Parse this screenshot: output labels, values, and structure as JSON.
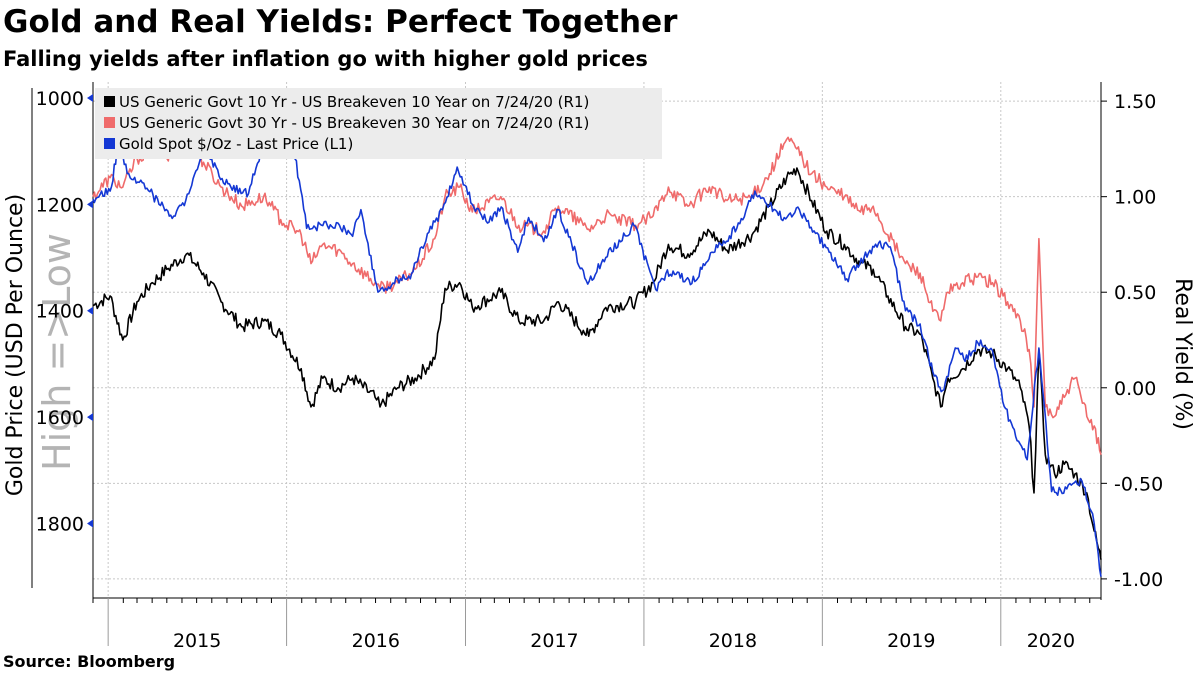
{
  "title": "Gold and Real Yields: Perfect Together",
  "subtitle": "Falling yields after inflation go with higher gold prices",
  "source": "Source: Bloomberg",
  "colors": {
    "us10": "#000000",
    "us30": "#ef6b6b",
    "gold": "#1438d4",
    "grid": "#c8c8c8",
    "legend_bg": "#ececec",
    "watermark": "#b4b4b4"
  },
  "chart_data": {
    "type": "line",
    "title": "Gold and Real Yields: Perfect Together",
    "subtitle": "Falling yields after inflation go with higher gold prices",
    "x_axis": {
      "type": "time",
      "range": [
        "2014-12-01",
        "2020-07-24"
      ],
      "year_labels": [
        "2015",
        "2016",
        "2017",
        "2018",
        "2019",
        "2020"
      ]
    },
    "left_axis": {
      "label": "Gold Price (USD Per Ounce)",
      "inverted": true,
      "range": [
        970,
        1940
      ],
      "ticks": [
        1000,
        1200,
        1400,
        1600,
        1800
      ],
      "watermark": "High =>Low"
    },
    "right_axis": {
      "label": "Real Yield (%)",
      "range": [
        -1.1,
        1.6
      ],
      "ticks": [
        "1.50",
        "1.00",
        "0.50",
        "0.00",
        "-0.50",
        "-1.00"
      ]
    },
    "grid": true,
    "legend_position": "top-left",
    "legend": [
      "US Generic Govt 10 Yr - US Breakeven 10 Year on 7/24/20 (R1)",
      "US Generic Govt 30 Yr - US Breakeven 30 Year on 7/24/20 (R1)",
      "Gold Spot $/Oz - Last Price (L1)"
    ],
    "series": [
      {
        "name": "US Generic Govt 10 Yr - US Breakeven 10 Year on 7/24/20 (R1)",
        "axis": "right",
        "points": [
          [
            "2014-12-01",
            0.43
          ],
          [
            "2015-01-05",
            0.48
          ],
          [
            "2015-01-31",
            0.25
          ],
          [
            "2015-03-01",
            0.45
          ],
          [
            "2015-04-01",
            0.55
          ],
          [
            "2015-05-01",
            0.62
          ],
          [
            "2015-06-10",
            0.7
          ],
          [
            "2015-07-15",
            0.6
          ],
          [
            "2015-08-20",
            0.45
          ],
          [
            "2015-10-01",
            0.32
          ],
          [
            "2015-11-15",
            0.35
          ],
          [
            "2015-12-20",
            0.28
          ],
          [
            "2016-01-31",
            0.1
          ],
          [
            "2016-02-20",
            -0.1
          ],
          [
            "2016-03-15",
            0.05
          ],
          [
            "2016-04-15",
            0.0
          ],
          [
            "2016-05-15",
            0.05
          ],
          [
            "2016-06-30",
            -0.05
          ],
          [
            "2016-07-10",
            -0.1
          ],
          [
            "2016-08-15",
            0.0
          ],
          [
            "2016-09-20",
            0.05
          ],
          [
            "2016-10-30",
            0.15
          ],
          [
            "2016-11-20",
            0.52
          ],
          [
            "2016-12-20",
            0.55
          ],
          [
            "2017-01-15",
            0.42
          ],
          [
            "2017-03-14",
            0.5
          ],
          [
            "2017-04-20",
            0.35
          ],
          [
            "2017-06-10",
            0.35
          ],
          [
            "2017-07-10",
            0.45
          ],
          [
            "2017-08-30",
            0.3
          ],
          [
            "2017-09-10",
            0.27
          ],
          [
            "2017-10-15",
            0.42
          ],
          [
            "2017-12-15",
            0.45
          ],
          [
            "2018-01-20",
            0.55
          ],
          [
            "2018-02-20",
            0.75
          ],
          [
            "2018-04-01",
            0.7
          ],
          [
            "2018-05-15",
            0.82
          ],
          [
            "2018-06-20",
            0.72
          ],
          [
            "2018-08-10",
            0.8
          ],
          [
            "2018-09-15",
            0.95
          ],
          [
            "2018-10-20",
            1.1
          ],
          [
            "2018-11-10",
            1.15
          ],
          [
            "2018-12-10",
            0.98
          ],
          [
            "2019-01-10",
            0.82
          ],
          [
            "2019-02-15",
            0.75
          ],
          [
            "2019-03-20",
            0.65
          ],
          [
            "2019-04-15",
            0.62
          ],
          [
            "2019-05-15",
            0.48
          ],
          [
            "2019-06-20",
            0.32
          ],
          [
            "2019-07-20",
            0.28
          ],
          [
            "2019-08-15",
            0.05
          ],
          [
            "2019-08-31",
            -0.1
          ],
          [
            "2019-09-15",
            0.05
          ],
          [
            "2019-10-15",
            0.1
          ],
          [
            "2019-11-15",
            0.2
          ],
          [
            "2019-12-15",
            0.18
          ],
          [
            "2020-01-15",
            0.1
          ],
          [
            "2020-02-10",
            0.0
          ],
          [
            "2020-02-28",
            -0.2
          ],
          [
            "2020-03-09",
            -0.55
          ],
          [
            "2020-03-19",
            0.2
          ],
          [
            "2020-04-01",
            -0.35
          ],
          [
            "2020-04-20",
            -0.45
          ],
          [
            "2020-05-10",
            -0.4
          ],
          [
            "2020-06-01",
            -0.45
          ],
          [
            "2020-06-25",
            -0.55
          ],
          [
            "2020-07-10",
            -0.75
          ],
          [
            "2020-07-24",
            -0.9
          ]
        ]
      },
      {
        "name": "US Generic Govt 30 Yr - US Breakeven 30 Year on 7/24/20 (R1)",
        "axis": "right",
        "points": [
          [
            "2014-12-01",
            1.0
          ],
          [
            "2015-01-05",
            1.1
          ],
          [
            "2015-01-31",
            1.05
          ],
          [
            "2015-03-01",
            1.2
          ],
          [
            "2015-04-01",
            1.25
          ],
          [
            "2015-05-01",
            1.2
          ],
          [
            "2015-06-10",
            1.3
          ],
          [
            "2015-07-15",
            1.18
          ],
          [
            "2015-08-20",
            1.05
          ],
          [
            "2015-10-01",
            0.95
          ],
          [
            "2015-11-15",
            1.0
          ],
          [
            "2015-12-20",
            0.88
          ],
          [
            "2016-01-31",
            0.8
          ],
          [
            "2016-02-20",
            0.65
          ],
          [
            "2016-03-15",
            0.75
          ],
          [
            "2016-04-15",
            0.72
          ],
          [
            "2016-05-15",
            0.65
          ],
          [
            "2016-06-30",
            0.55
          ],
          [
            "2016-07-10",
            0.52
          ],
          [
            "2016-08-15",
            0.55
          ],
          [
            "2016-09-20",
            0.62
          ],
          [
            "2016-10-30",
            0.78
          ],
          [
            "2016-11-20",
            1.0
          ],
          [
            "2016-12-20",
            1.05
          ],
          [
            "2017-01-15",
            0.92
          ],
          [
            "2017-03-14",
            1.0
          ],
          [
            "2017-04-20",
            0.85
          ],
          [
            "2017-06-10",
            0.82
          ],
          [
            "2017-07-10",
            0.95
          ],
          [
            "2017-08-30",
            0.85
          ],
          [
            "2017-09-10",
            0.83
          ],
          [
            "2017-10-15",
            0.9
          ],
          [
            "2017-12-15",
            0.85
          ],
          [
            "2018-01-20",
            0.9
          ],
          [
            "2018-02-20",
            1.05
          ],
          [
            "2018-04-01",
            0.95
          ],
          [
            "2018-05-15",
            1.05
          ],
          [
            "2018-06-20",
            0.98
          ],
          [
            "2018-08-10",
            1.0
          ],
          [
            "2018-09-15",
            1.12
          ],
          [
            "2018-10-20",
            1.3
          ],
          [
            "2018-11-10",
            1.25
          ],
          [
            "2018-12-10",
            1.12
          ],
          [
            "2019-01-10",
            1.05
          ],
          [
            "2019-02-15",
            1.0
          ],
          [
            "2019-03-20",
            0.92
          ],
          [
            "2019-04-15",
            0.95
          ],
          [
            "2019-05-15",
            0.8
          ],
          [
            "2019-06-20",
            0.65
          ],
          [
            "2019-07-20",
            0.6
          ],
          [
            "2019-08-15",
            0.4
          ],
          [
            "2019-08-31",
            0.35
          ],
          [
            "2019-09-15",
            0.5
          ],
          [
            "2019-10-15",
            0.55
          ],
          [
            "2019-11-15",
            0.58
          ],
          [
            "2019-12-15",
            0.55
          ],
          [
            "2020-01-15",
            0.45
          ],
          [
            "2020-02-10",
            0.35
          ],
          [
            "2020-02-28",
            0.2
          ],
          [
            "2020-03-09",
            -0.1
          ],
          [
            "2020-03-19",
            0.78
          ],
          [
            "2020-04-01",
            -0.1
          ],
          [
            "2020-04-20",
            -0.15
          ],
          [
            "2020-05-10",
            -0.05
          ],
          [
            "2020-06-01",
            0.05
          ],
          [
            "2020-06-25",
            -0.15
          ],
          [
            "2020-07-10",
            -0.2
          ],
          [
            "2020-07-24",
            -0.35
          ]
        ]
      },
      {
        "name": "Gold Spot $/Oz - Last Price (L1)",
        "axis": "left",
        "points": [
          [
            "2014-12-01",
            1190
          ],
          [
            "2015-01-05",
            1175
          ],
          [
            "2015-01-22",
            1090
          ],
          [
            "2015-02-15",
            1150
          ],
          [
            "2015-03-15",
            1160
          ],
          [
            "2015-04-15",
            1200
          ],
          [
            "2015-05-18",
            1222
          ],
          [
            "2015-06-15",
            1180
          ],
          [
            "2015-07-20",
            1095
          ],
          [
            "2015-08-25",
            1160
          ],
          [
            "2015-10-15",
            1180
          ],
          [
            "2015-11-15",
            1085
          ],
          [
            "2015-12-17",
            1052
          ],
          [
            "2016-01-15",
            1090
          ],
          [
            "2016-02-11",
            1245
          ],
          [
            "2016-03-15",
            1240
          ],
          [
            "2016-04-15",
            1235
          ],
          [
            "2016-05-15",
            1260
          ],
          [
            "2016-06-01",
            1210
          ],
          [
            "2016-07-06",
            1365
          ],
          [
            "2016-08-15",
            1340
          ],
          [
            "2016-09-10",
            1340
          ],
          [
            "2016-10-15",
            1255
          ],
          [
            "2016-11-15",
            1210
          ],
          [
            "2016-12-15",
            1130
          ],
          [
            "2017-01-15",
            1200
          ],
          [
            "2017-02-15",
            1235
          ],
          [
            "2017-03-15",
            1205
          ],
          [
            "2017-04-18",
            1290
          ],
          [
            "2017-05-10",
            1225
          ],
          [
            "2017-06-10",
            1270
          ],
          [
            "2017-07-10",
            1210
          ],
          [
            "2017-09-08",
            1350
          ],
          [
            "2017-10-15",
            1300
          ],
          [
            "2017-12-12",
            1240
          ],
          [
            "2018-01-25",
            1360
          ],
          [
            "2018-02-15",
            1330
          ],
          [
            "2018-04-15",
            1345
          ],
          [
            "2018-05-20",
            1290
          ],
          [
            "2018-07-10",
            1245
          ],
          [
            "2018-08-16",
            1175
          ],
          [
            "2018-09-15",
            1200
          ],
          [
            "2018-10-15",
            1225
          ],
          [
            "2018-11-15",
            1210
          ],
          [
            "2018-12-15",
            1250
          ],
          [
            "2019-01-15",
            1290
          ],
          [
            "2019-02-20",
            1340
          ],
          [
            "2019-04-20",
            1275
          ],
          [
            "2019-05-20",
            1280
          ],
          [
            "2019-06-20",
            1400
          ],
          [
            "2019-07-20",
            1425
          ],
          [
            "2019-08-15",
            1515
          ],
          [
            "2019-09-04",
            1550
          ],
          [
            "2019-09-30",
            1470
          ],
          [
            "2019-10-20",
            1495
          ],
          [
            "2019-11-15",
            1460
          ],
          [
            "2019-12-15",
            1475
          ],
          [
            "2020-01-08",
            1580
          ],
          [
            "2020-02-24",
            1680
          ],
          [
            "2020-03-19",
            1470
          ],
          [
            "2020-04-14",
            1740
          ],
          [
            "2020-05-15",
            1735
          ],
          [
            "2020-06-15",
            1720
          ],
          [
            "2020-07-10",
            1800
          ],
          [
            "2020-07-24",
            1900
          ]
        ]
      }
    ]
  }
}
